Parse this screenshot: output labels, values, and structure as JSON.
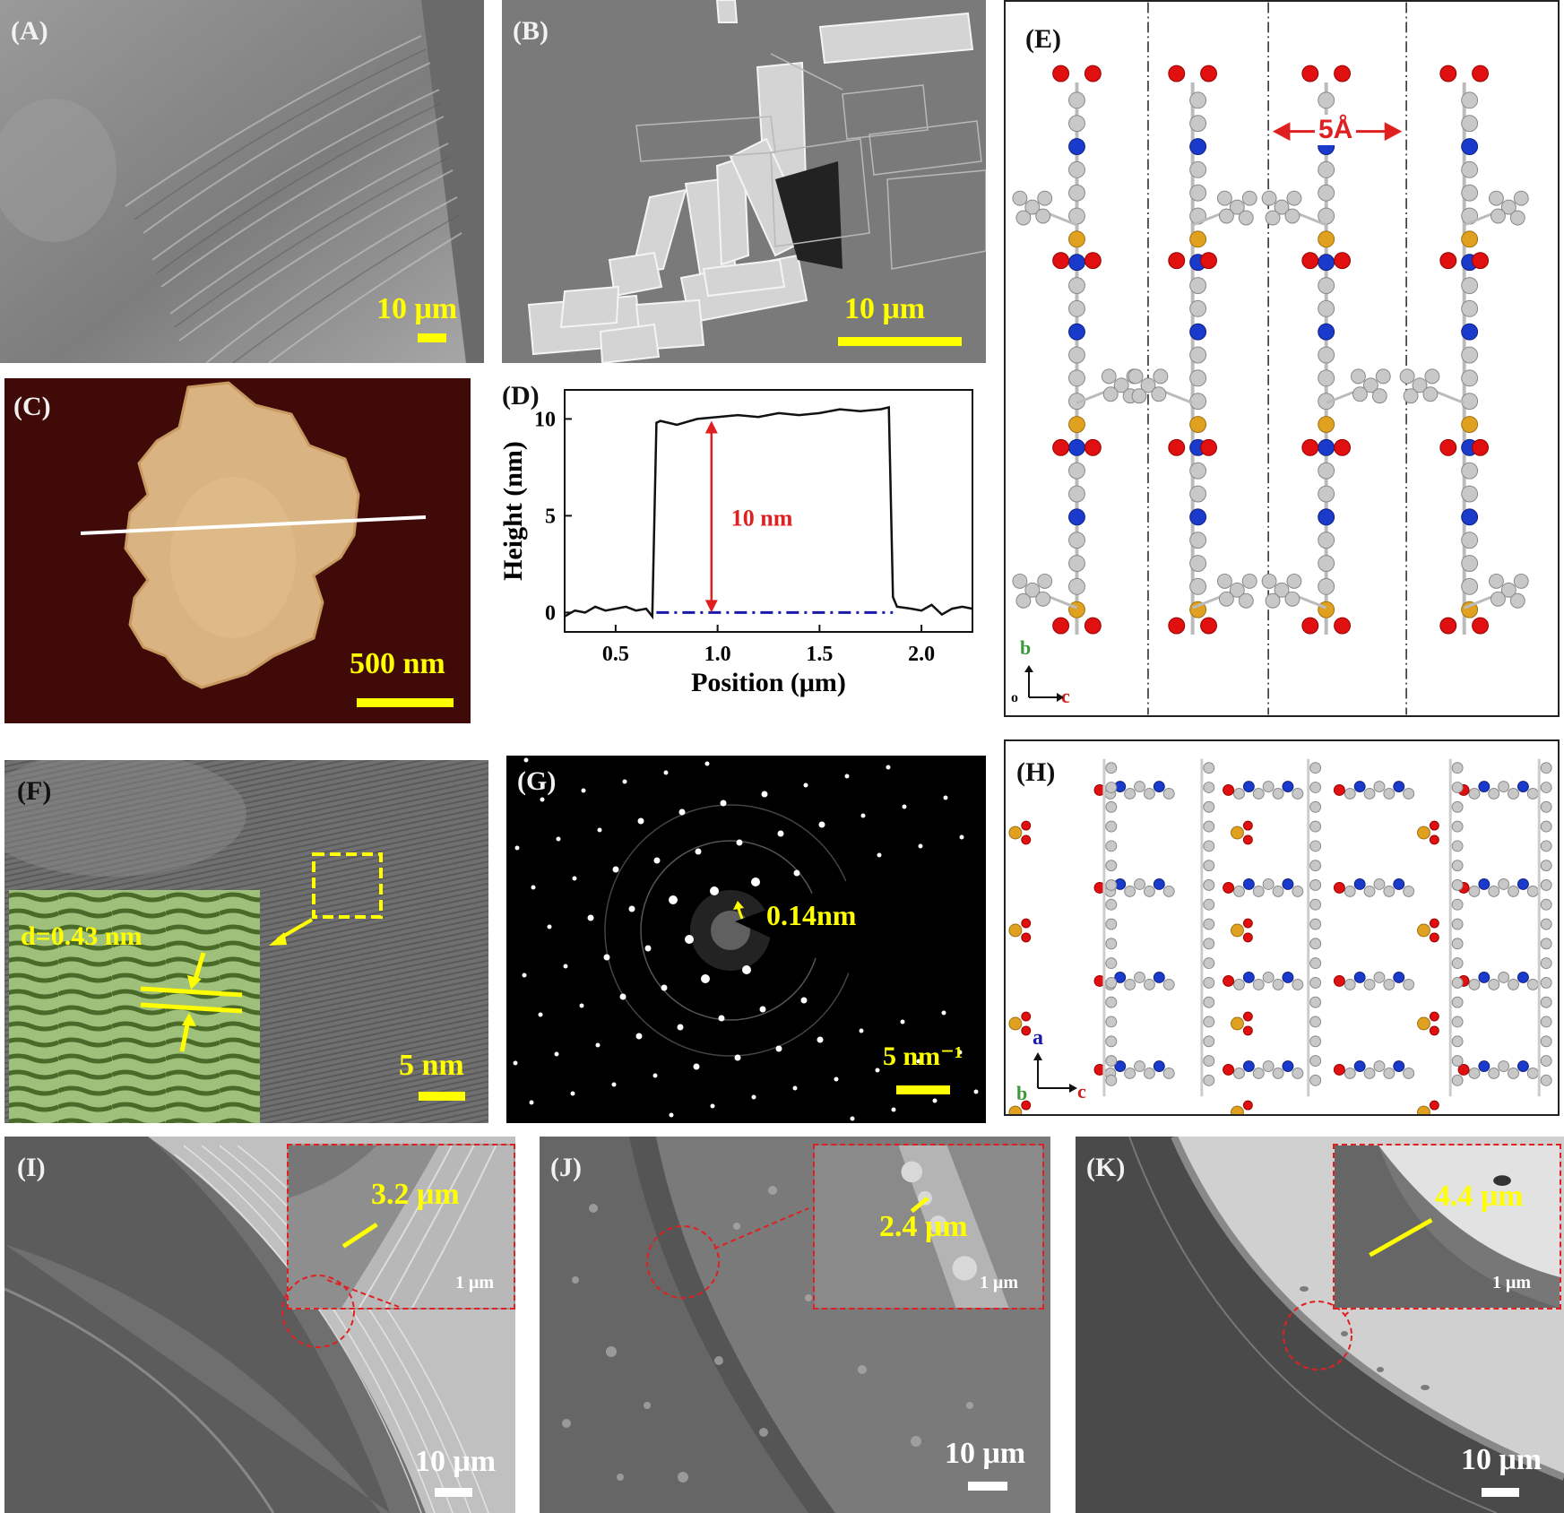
{
  "panels": {
    "A": {
      "label": "(A)",
      "scale": "10 μm"
    },
    "B": {
      "label": "(B)",
      "scale": "10 μm"
    },
    "C": {
      "label": "(C)",
      "scale": "500 nm"
    },
    "D": {
      "label": "(D)",
      "annotation": "10 nm"
    },
    "E": {
      "label": "(E)",
      "spacing": "5Å",
      "axis_b": "b",
      "axis_c": "c",
      "axis_o": "o"
    },
    "F": {
      "label": "(F)",
      "dspacing": "d=0.43 nm",
      "scale": "5 nm"
    },
    "G": {
      "label": "(G)",
      "ring": "0.14nm",
      "scale": "5 nm⁻¹"
    },
    "H": {
      "label": "(H)",
      "axis_a": "a",
      "axis_b": "b",
      "axis_c": "c"
    },
    "I": {
      "label": "(I)",
      "thickness": "3.2 μm",
      "inset_scale": "1 μm",
      "scale": "10 μm"
    },
    "J": {
      "label": "(J)",
      "thickness": "2.4 μm",
      "inset_scale": "1 μm",
      "scale": "10 μm"
    },
    "K": {
      "label": "(K)",
      "thickness": "4.4 μm",
      "inset_scale": "1 μm",
      "scale": "10 μm"
    }
  },
  "colors": {
    "scalebar": "#ffff00",
    "annotation": "#e02020",
    "baseline": "#1a1aaa"
  },
  "chart_data": {
    "type": "line",
    "title": "",
    "xlabel": "Position (μm)",
    "ylabel": "Height (nm)",
    "xlim": [
      0.25,
      2.25
    ],
    "ylim": [
      -1,
      11.5
    ],
    "xticks": [
      0.5,
      1.0,
      1.5,
      2.0
    ],
    "xtick_labels": [
      "0.5",
      "1.0",
      "1.5",
      "2.0"
    ],
    "yticks": [
      0,
      5,
      10
    ],
    "ytick_labels": [
      "0",
      "5",
      "10"
    ],
    "series": [
      {
        "x": [
          0.25,
          0.3,
          0.35,
          0.4,
          0.45,
          0.5,
          0.55,
          0.6,
          0.65,
          0.68,
          0.7,
          0.72,
          0.8,
          0.9,
          1.0,
          1.1,
          1.2,
          1.3,
          1.4,
          1.5,
          1.6,
          1.7,
          1.8,
          1.84,
          1.86,
          1.88,
          1.95,
          2.0,
          2.05,
          2.1,
          2.15,
          2.2,
          2.25
        ],
        "y": [
          -0.2,
          0.1,
          0.0,
          0.3,
          0.1,
          0.2,
          0.3,
          0.1,
          0.2,
          -0.2,
          9.8,
          9.9,
          9.7,
          10.0,
          10.1,
          10.2,
          10.1,
          10.3,
          10.2,
          10.3,
          10.5,
          10.4,
          10.5,
          10.6,
          0.8,
          0.3,
          0.2,
          0.1,
          0.4,
          -0.1,
          0.2,
          0.3,
          0.2
        ]
      }
    ],
    "baseline_y": 0,
    "arrow": {
      "x": 0.97,
      "from": 0,
      "to": 9.9,
      "label": "10 nm"
    }
  }
}
